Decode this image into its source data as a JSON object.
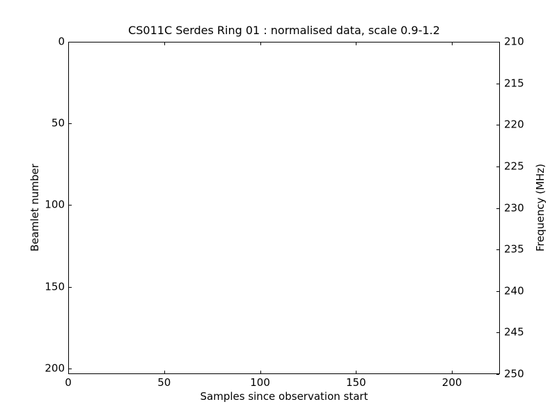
{
  "figure": {
    "background_color": "#ffffff",
    "foreground_color": "#000000",
    "plot_area_empty": true
  },
  "chart_data": {
    "type": "heatmap",
    "title": "CS011C Serdes Ring 01 : normalised data, scale 0.9-1.2",
    "xlabel": "Samples since observation start",
    "ylabel_left": "Beamlet number",
    "ylabel_right": "Frequency (MHz)",
    "x_ticks": [
      0,
      50,
      100,
      150,
      200
    ],
    "xlim": [
      0,
      225
    ],
    "y_ticks_left": [
      0,
      50,
      100,
      150,
      200
    ],
    "ylim_left": [
      0,
      203.5
    ],
    "y_ticks_right": [
      210,
      215,
      220,
      225,
      230,
      235,
      240,
      245,
      250
    ],
    "ylim_right": [
      210,
      250
    ],
    "grid": false,
    "legend": false,
    "values": [],
    "tick_direction": "in",
    "axis_color": "#000000"
  }
}
